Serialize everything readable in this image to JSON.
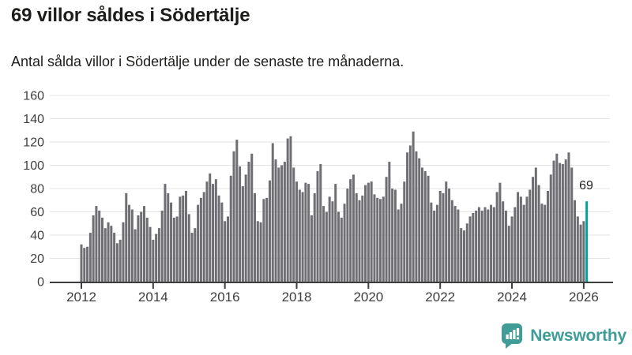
{
  "header": {
    "title": "69 villor såldes i Södertälje",
    "subtitle": "Antal sålda villor i Södertälje under de senaste tre månaderna."
  },
  "chart_data": {
    "type": "bar",
    "title": "69 villor såldes i Södertälje",
    "subtitle": "Antal sålda villor i Södertälje under de senaste tre månaderna.",
    "x_start": "2012-01",
    "x_end": "2026-02",
    "frequency": "monthly",
    "values": [
      32,
      29,
      30,
      42,
      57,
      65,
      61,
      55,
      46,
      51,
      48,
      42,
      33,
      36,
      51,
      76,
      66,
      62,
      45,
      57,
      60,
      65,
      55,
      47,
      36,
      41,
      46,
      61,
      84,
      76,
      68,
      55,
      56,
      73,
      74,
      78,
      58,
      42,
      46,
      66,
      72,
      77,
      86,
      93,
      84,
      88,
      74,
      68,
      52,
      56,
      91,
      112,
      122,
      99,
      82,
      92,
      103,
      110,
      76,
      52,
      51,
      71,
      72,
      87,
      119,
      105,
      98,
      100,
      103,
      123,
      125,
      98,
      86,
      79,
      77,
      85,
      84,
      57,
      76,
      95,
      101,
      65,
      60,
      73,
      69,
      84,
      60,
      55,
      67,
      80,
      88,
      92,
      76,
      70,
      74,
      83,
      85,
      86,
      75,
      72,
      71,
      73,
      90,
      103,
      80,
      79,
      62,
      67,
      86,
      111,
      117,
      129,
      112,
      106,
      98,
      95,
      91,
      68,
      61,
      66,
      78,
      76,
      86,
      80,
      70,
      65,
      62,
      46,
      44,
      50,
      56,
      59,
      61,
      64,
      61,
      64,
      62,
      66,
      64,
      77,
      85,
      69,
      61,
      48,
      56,
      64,
      77,
      73,
      66,
      73,
      79,
      90,
      98,
      83,
      67,
      66,
      78,
      92,
      104,
      110,
      102,
      101,
      105,
      111,
      98,
      70,
      56,
      49,
      52,
      69
    ],
    "highlight": {
      "index": 169,
      "label": "69",
      "color": "#00a29a"
    },
    "bar_color": "#6e6e73",
    "ylim": [
      0,
      160
    ],
    "yticks": [
      0,
      20,
      40,
      60,
      80,
      100,
      120,
      140,
      160
    ],
    "xticks": [
      2012,
      2014,
      2016,
      2018,
      2020,
      2022,
      2024,
      2026
    ],
    "grid": true,
    "grid_color": "#e3e3e3",
    "axis_color": "#3d3d3d",
    "legend": "none"
  },
  "footer": {
    "brand": "Newsworthy",
    "brand_color": "#3f9c96",
    "logo_icon": "bar-chart-speech-bubble-icon"
  }
}
